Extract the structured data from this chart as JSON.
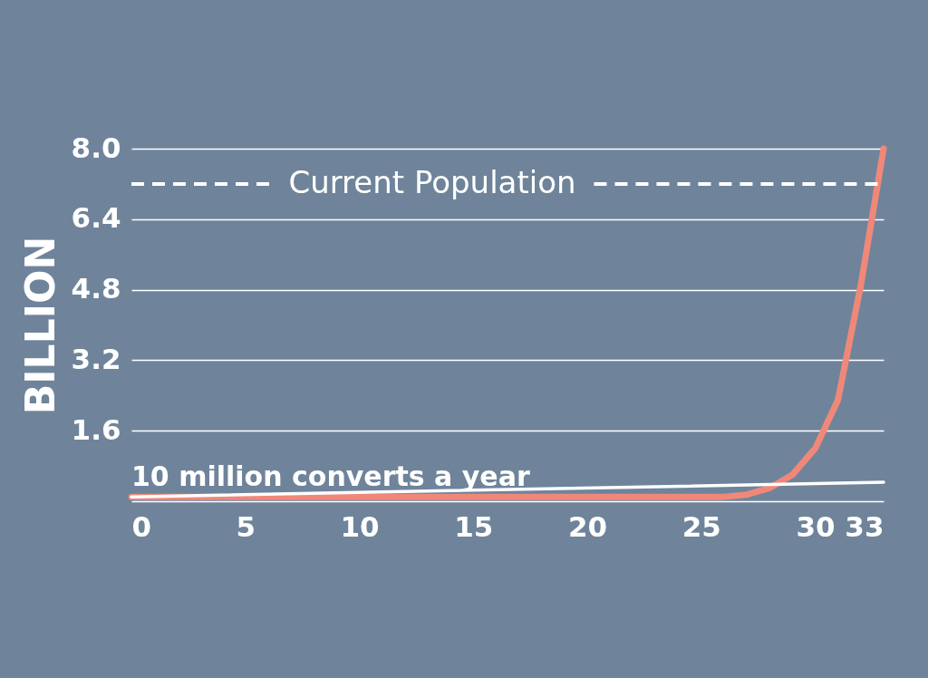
{
  "chart_data": {
    "type": "line",
    "ylabel": "BILLION",
    "xlim": [
      0,
      33
    ],
    "xticks": [
      0,
      5,
      10,
      15,
      20,
      25,
      30,
      33
    ],
    "ylim": [
      0,
      8
    ],
    "yticks": [
      {
        "value": 0,
        "label": null
      },
      1.6,
      3.2,
      4.8,
      6.4,
      {
        "value": 8,
        "label": "8.0"
      }
    ],
    "grid": "y",
    "line_style": "solid",
    "marker": "none",
    "legend": false,
    "series": [
      {
        "color": "#f0887a",
        "x": [
          0,
          5,
          10,
          15,
          20,
          25,
          26,
          27,
          28,
          29,
          30,
          31,
          32,
          33
        ],
        "values": [
          0.1,
          0.1,
          0.1,
          0.1,
          0.1,
          0.1,
          0.1,
          0.15,
          0.3,
          0.6,
          1.2,
          2.3,
          4.9,
          8.0
        ]
      },
      {
        "name": "10 million converts a year",
        "color": "#ffffff",
        "x": [
          0,
          33
        ],
        "values": [
          0.1,
          0.43
        ]
      }
    ],
    "ref_lines": [
      {
        "axis": "y",
        "value": 7.2,
        "label": "Current Population",
        "color": "#ffffff",
        "line_style": "dashed"
      }
    ]
  }
}
